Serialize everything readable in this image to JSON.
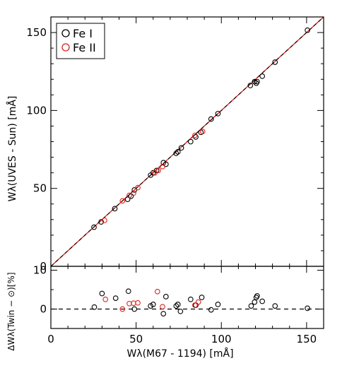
{
  "chart_data": [
    {
      "type": "scatter",
      "xlabel": "",
      "ylabel": "Wλ(UVES - Sun) [mÅ]",
      "xlim": [
        0,
        160
      ],
      "ylim": [
        0,
        160
      ],
      "yticks": [
        0,
        50,
        100,
        150
      ],
      "legend": {
        "position": "top-left",
        "entries": [
          "Fe I",
          "Fe II"
        ]
      },
      "lines": [
        {
          "kind": "fit",
          "color": "#e0201b",
          "style": "solid",
          "x": [
            0,
            160
          ],
          "y": [
            0,
            160
          ]
        },
        {
          "kind": "one-to-one",
          "color": "#000000",
          "style": "dashed",
          "x": [
            0,
            160
          ],
          "y": [
            0,
            160
          ]
        }
      ],
      "series": [
        {
          "name": "Fe I",
          "color": "#000000",
          "points": [
            [
              25.3,
              25.1
            ],
            [
              29.5,
              28.5
            ],
            [
              37.5,
              37.0
            ],
            [
              45.0,
              43.0
            ],
            [
              47.0,
              45.0
            ],
            [
              49.0,
              49.0
            ],
            [
              58.5,
              58.5
            ],
            [
              60.0,
              60.0
            ],
            [
              62.0,
              61.5
            ],
            [
              66.0,
              66.5
            ],
            [
              67.5,
              65.5
            ],
            [
              73.5,
              72.5
            ],
            [
              74.5,
              73.5
            ],
            [
              76.5,
              76.0
            ],
            [
              82.0,
              80.0
            ],
            [
              85.0,
              83.0
            ],
            [
              88.0,
              86.0
            ],
            [
              94.0,
              94.5
            ],
            [
              98.0,
              98.0
            ],
            [
              117.0,
              116.0
            ],
            [
              119.5,
              118.5
            ],
            [
              120.5,
              117.5
            ],
            [
              121.0,
              118.5
            ],
            [
              124.0,
              122.0
            ],
            [
              131.5,
              131.0
            ],
            [
              150.5,
              151.5
            ]
          ]
        },
        {
          "name": "Fe II",
          "color": "#e0201b",
          "points": [
            [
              31.5,
              29.5
            ],
            [
              42.0,
              42.0
            ],
            [
              46.0,
              45.5
            ],
            [
              48.5,
              47.0
            ],
            [
              51.0,
              50.5
            ],
            [
              61.0,
              60.0
            ],
            [
              63.0,
              61.5
            ],
            [
              65.5,
              64.0
            ],
            [
              84.5,
              84.0
            ],
            [
              89.0,
              86.5
            ]
          ]
        }
      ]
    },
    {
      "type": "scatter",
      "xlabel": "Wλ(M67 - 1194) [mÅ]",
      "ylabel": "ΔWλ(Twin − ⊙)[%]",
      "xlim": [
        0,
        160
      ],
      "ylim": [
        -5,
        11
      ],
      "xticks": [
        0,
        50,
        100,
        150
      ],
      "yticks": [
        0,
        10
      ],
      "reference_line": {
        "y": 0,
        "style": "dashed",
        "color": "#000000"
      },
      "series": [
        {
          "name": "Fe I",
          "color": "#000000",
          "points": [
            [
              25.5,
              0.5
            ],
            [
              30.0,
              4.0
            ],
            [
              38.0,
              2.8
            ],
            [
              45.5,
              4.6
            ],
            [
              49.0,
              0.0
            ],
            [
              58.5,
              0.8
            ],
            [
              60.0,
              1.2
            ],
            [
              66.0,
              -1.2
            ],
            [
              67.5,
              3.2
            ],
            [
              73.5,
              0.8
            ],
            [
              74.5,
              1.2
            ],
            [
              76.0,
              -0.6
            ],
            [
              82.0,
              2.5
            ],
            [
              85.0,
              1.0
            ],
            [
              88.5,
              3.0
            ],
            [
              94.0,
              -0.2
            ],
            [
              98.0,
              1.2
            ],
            [
              117.5,
              0.8
            ],
            [
              119.5,
              1.8
            ],
            [
              120.5,
              3.0
            ],
            [
              121.0,
              3.4
            ],
            [
              124.0,
              2.0
            ],
            [
              131.5,
              0.8
            ],
            [
              150.5,
              0.2
            ]
          ]
        },
        {
          "name": "Fe II",
          "color": "#e0201b",
          "points": [
            [
              32.0,
              2.5
            ],
            [
              42.0,
              0.0
            ],
            [
              46.0,
              1.4
            ],
            [
              48.5,
              1.5
            ],
            [
              51.0,
              1.6
            ],
            [
              62.5,
              4.5
            ],
            [
              65.5,
              0.6
            ],
            [
              84.5,
              1.0
            ],
            [
              86.5,
              1.8
            ]
          ]
        }
      ]
    }
  ]
}
